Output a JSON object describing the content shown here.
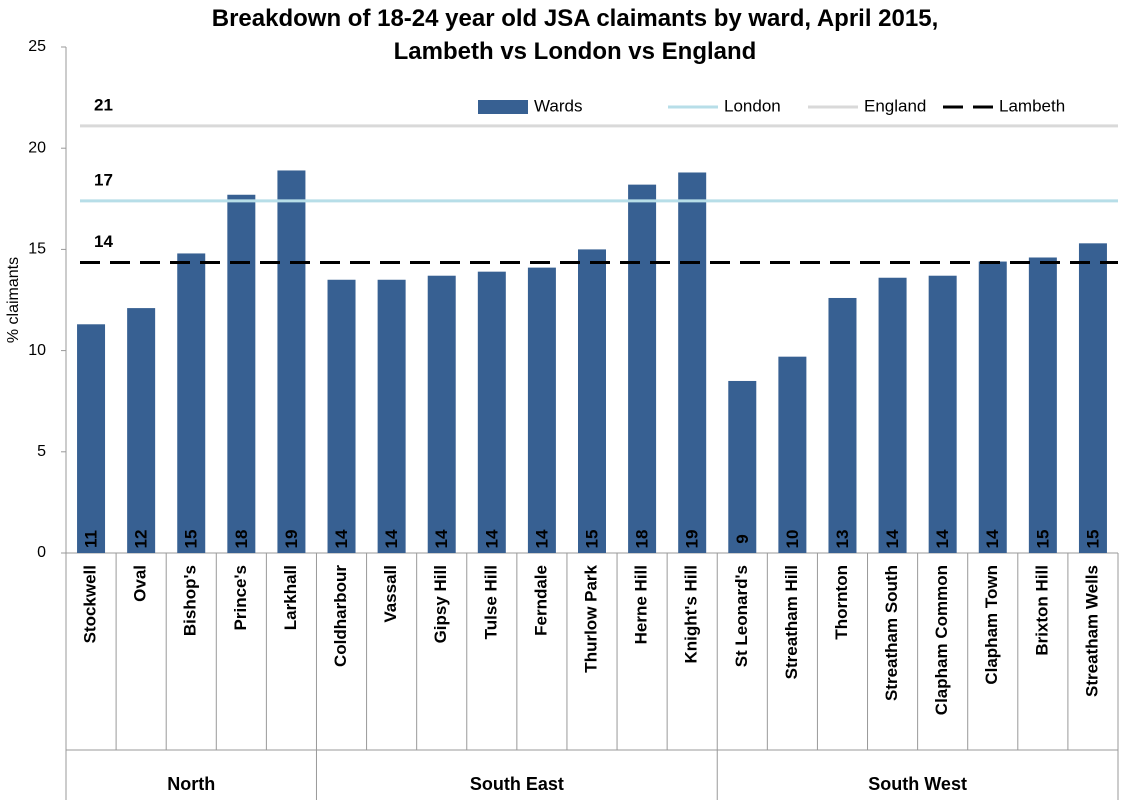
{
  "chart_data": {
    "type": "bar",
    "title": "Breakdown of 18-24 year old JSA claimants by ward, April 2015,\nLambeth vs London vs England",
    "y_label": "% claimants",
    "categories": [
      "Stockwell",
      "Oval",
      "Bishop's",
      "Prince's",
      "Larkhall",
      "Coldharbour",
      "Vassall",
      "Gipsy Hill",
      "Tulse Hill",
      "Ferndale",
      "Thurlow Park",
      "Herne Hill",
      "Knight's Hill",
      "St Leonard's",
      "Streatham Hill",
      "Thornton",
      "Streatham South",
      "Clapham Common",
      "Clapham Town",
      "Brixton Hill",
      "Streatham Wells"
    ],
    "category_groups": [
      "North",
      "North",
      "North",
      "North",
      "North",
      "South East",
      "South East",
      "South East",
      "South East",
      "South East",
      "South East",
      "South East",
      "South East",
      "South West",
      "South West",
      "South West",
      "South West",
      "South West",
      "South West",
      "South West",
      "South West"
    ],
    "series": [
      {
        "name": "Wards",
        "type": "bar",
        "color": "#376092",
        "values": [
          11.3,
          12.1,
          14.8,
          17.7,
          18.9,
          13.5,
          13.5,
          13.7,
          13.9,
          14.1,
          15.0,
          18.2,
          18.8,
          8.5,
          9.7,
          12.6,
          13.6,
          13.7,
          14.4,
          14.6,
          15.3
        ],
        "value_labels": [
          "11",
          "12",
          "15",
          "18",
          "19",
          "14",
          "14",
          "14",
          "14",
          "14",
          "15",
          "18",
          "19",
          "9",
          "10",
          "13",
          "14",
          "14",
          "14",
          "15",
          "15"
        ]
      },
      {
        "name": "London",
        "type": "line",
        "color": "#b7dee8",
        "value": 17.4,
        "value_label": "17"
      },
      {
        "name": "England",
        "type": "line",
        "color": "#d9d9d9",
        "value": 21.1,
        "value_label": "21"
      },
      {
        "name": "Lambeth",
        "type": "line",
        "color": "#000000",
        "dashed": true,
        "value": 14.35,
        "value_label": "14"
      }
    ],
    "ylim": [
      0,
      25
    ],
    "yticks": [
      0,
      5,
      10,
      15,
      20,
      25
    ],
    "grid": false,
    "legend": "top-right"
  }
}
